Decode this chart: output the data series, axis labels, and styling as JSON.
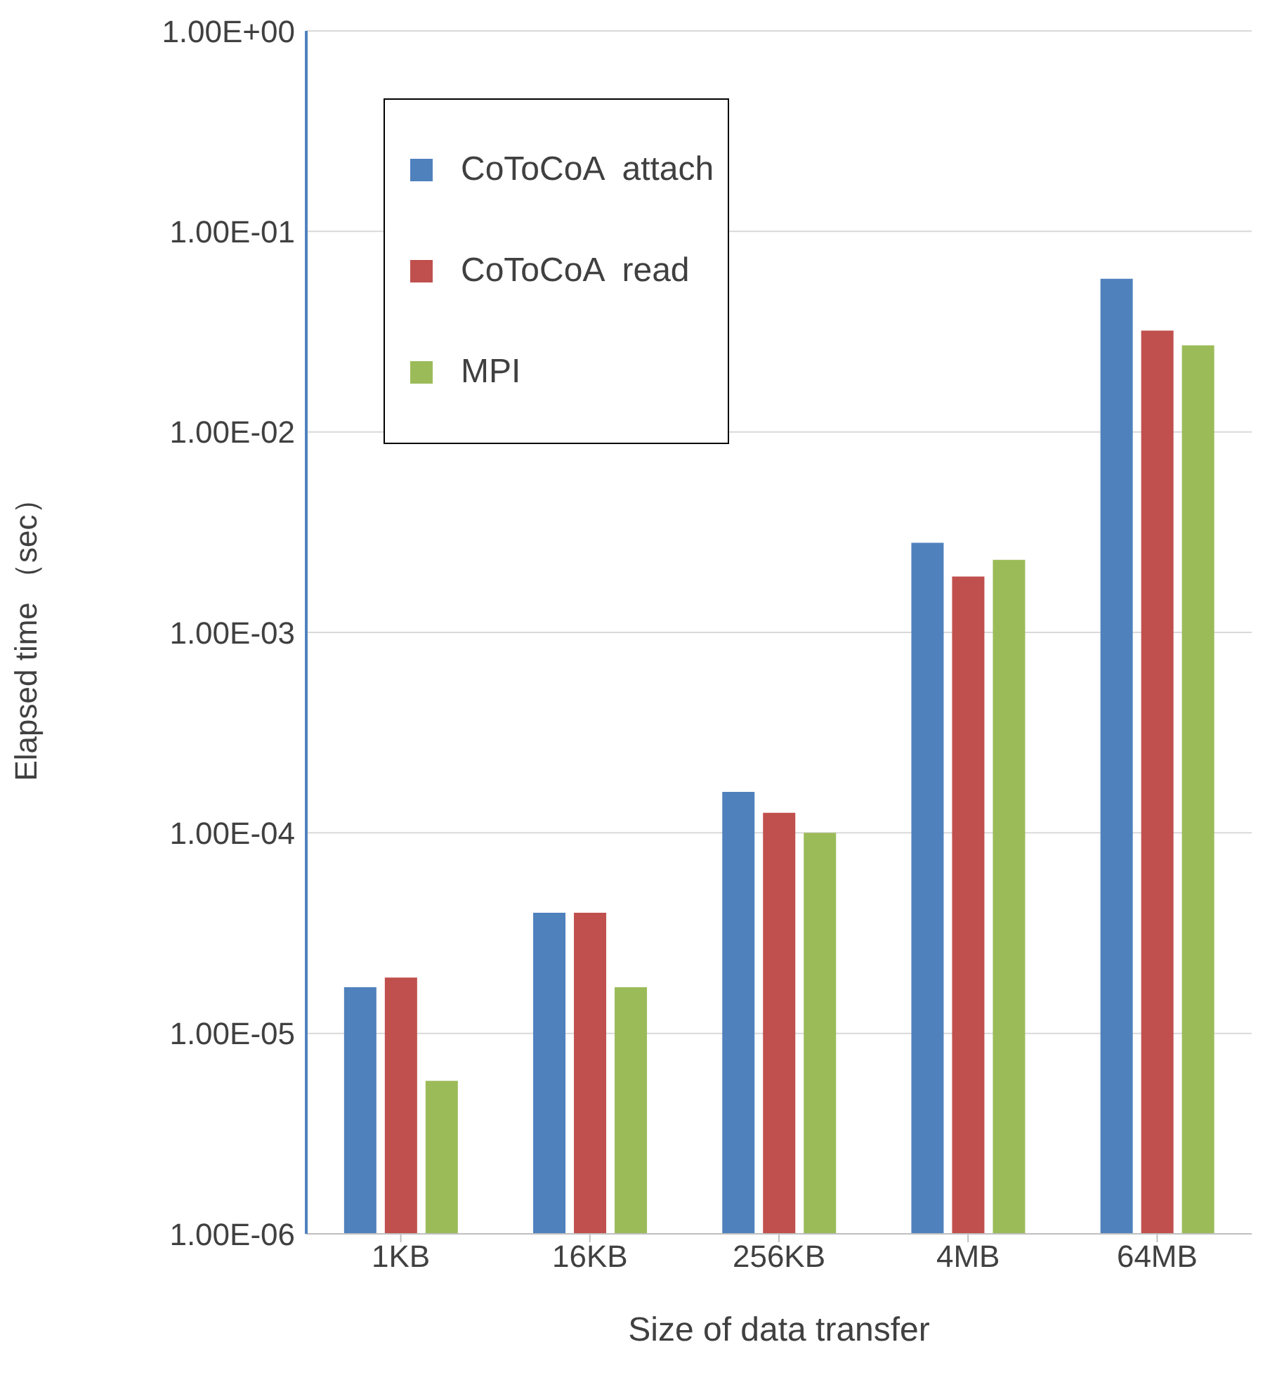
{
  "chart_data": {
    "type": "bar",
    "xlabel": "Size of data transfer",
    "ylabel": "Elapsed time （sec）",
    "categories": [
      "1KB",
      "16KB",
      "256KB",
      "4MB",
      "64MB"
    ],
    "series": [
      {
        "name": "CoToCoA  attach",
        "color": "#4f81bd",
        "values": [
          1.7e-05,
          4e-05,
          0.00016,
          0.0028,
          0.058
        ]
      },
      {
        "name": "CoToCoA  read",
        "color": "#c0504d",
        "values": [
          1.9e-05,
          4e-05,
          0.000126,
          0.0019,
          0.032
        ]
      },
      {
        "name": "MPI",
        "color": "#9bbb59",
        "values": [
          5.8e-06,
          1.7e-05,
          0.0001,
          0.0023,
          0.027
        ]
      }
    ],
    "log": "y",
    "ylim": [
      1e-06,
      1
    ],
    "yticks": [
      {
        "value": 1e-06,
        "label": "1.00E-06"
      },
      {
        "value": 1e-05,
        "label": "1.00E-05"
      },
      {
        "value": 0.0001,
        "label": "1.00E-04"
      },
      {
        "value": 0.001,
        "label": "1.00E-03"
      },
      {
        "value": 0.01,
        "label": "1.00E-02"
      },
      {
        "value": 0.1,
        "label": "1.00E-01"
      },
      {
        "value": 1,
        "label": "1.00E+00"
      }
    ],
    "grid": "y",
    "legend": "top left"
  }
}
